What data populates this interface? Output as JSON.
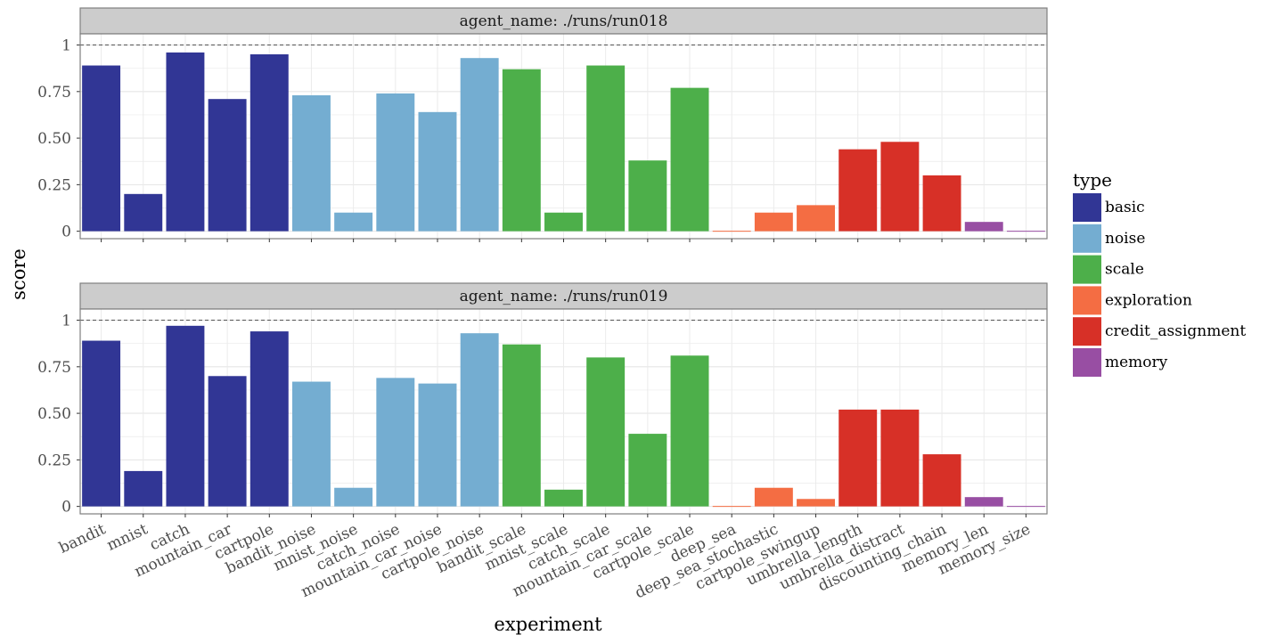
{
  "chart_data": {
    "type": "bar",
    "xlabel": "experiment",
    "ylabel": "score",
    "ylim": [
      -0.04,
      1.06
    ],
    "yticks": [
      0,
      0.25,
      0.5,
      0.75,
      1
    ],
    "ytick_labels": [
      "0",
      "0.25",
      "0.50",
      "0.75",
      "1"
    ],
    "reference_line": 1,
    "categories": [
      "bandit",
      "mnist",
      "catch",
      "mountain_car",
      "cartpole",
      "bandit_noise",
      "mnist_noise",
      "catch_noise",
      "mountain_car_noise",
      "cartpole_noise",
      "bandit_scale",
      "mnist_scale",
      "catch_scale",
      "mountain_car_scale",
      "cartpole_scale",
      "deep_sea",
      "deep_sea_stochastic",
      "cartpole_swingup",
      "umbrella_length",
      "umbrella_distract",
      "discounting_chain",
      "memory_len",
      "memory_size"
    ],
    "category_type": [
      "basic",
      "basic",
      "basic",
      "basic",
      "basic",
      "noise",
      "noise",
      "noise",
      "noise",
      "noise",
      "scale",
      "scale",
      "scale",
      "scale",
      "scale",
      "exploration",
      "exploration",
      "exploration",
      "credit_assignment",
      "credit_assignment",
      "credit_assignment",
      "memory",
      "memory"
    ],
    "legend": {
      "title": "type",
      "entries": [
        {
          "label": "basic",
          "color": "#313695"
        },
        {
          "label": "noise",
          "color": "#74add1"
        },
        {
          "label": "scale",
          "color": "#4daf4a"
        },
        {
          "label": "exploration",
          "color": "#f46d43"
        },
        {
          "label": "credit_assignment",
          "color": "#d73027"
        },
        {
          "label": "memory",
          "color": "#984ea3"
        }
      ]
    },
    "panels": [
      {
        "strip_label": "agent_name: ./runs/run018",
        "values": [
          0.89,
          0.2,
          0.96,
          0.71,
          0.95,
          0.73,
          0.1,
          0.74,
          0.64,
          0.93,
          0.87,
          0.1,
          0.89,
          0.38,
          0.77,
          0.0,
          0.1,
          0.14,
          0.44,
          0.48,
          0.3,
          0.05,
          0.0
        ]
      },
      {
        "strip_label": "agent_name: ./runs/run019",
        "values": [
          0.89,
          0.19,
          0.97,
          0.7,
          0.94,
          0.67,
          0.1,
          0.69,
          0.66,
          0.93,
          0.87,
          0.09,
          0.8,
          0.39,
          0.81,
          0.0,
          0.1,
          0.04,
          0.52,
          0.52,
          0.28,
          0.05,
          0.0
        ]
      }
    ]
  }
}
